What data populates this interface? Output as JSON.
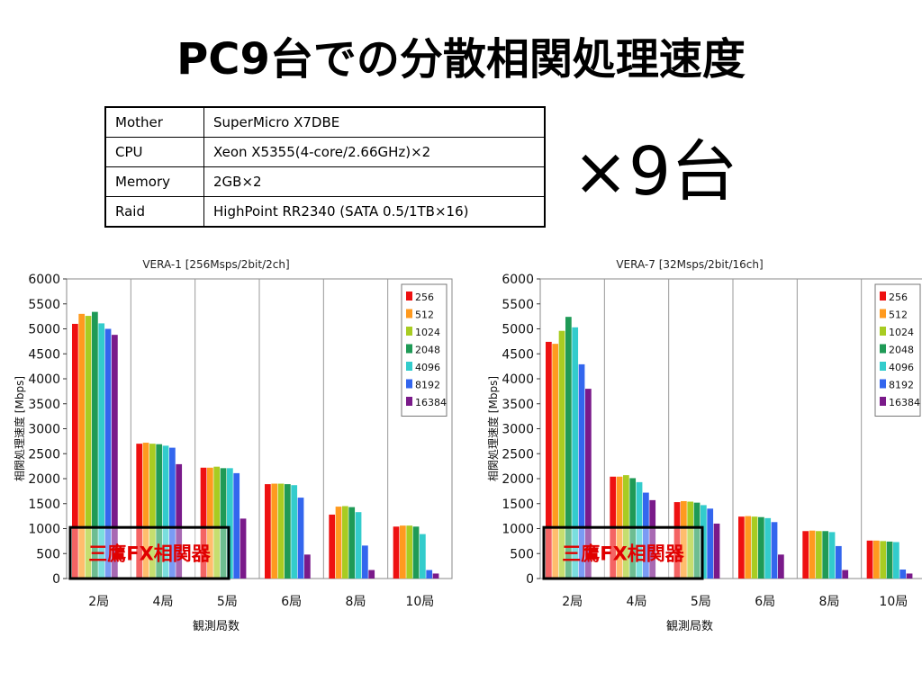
{
  "page": {
    "title": "PC9台での分散相関処理速度",
    "count_label": "×9台"
  },
  "spec_table": [
    {
      "key": "Mother",
      "value": "SuperMicro X7DBE"
    },
    {
      "key": "CPU",
      "value": "Xeon X5355(4-core/2.66GHz)×2"
    },
    {
      "key": "Memory",
      "value": "2GB×2"
    },
    {
      "key": "Raid",
      "value": "HighPoint RR2340 (SATA 0.5/1TB×16)"
    }
  ],
  "colors": [
    "#ee1111",
    "#ff9a1f",
    "#a8cc22",
    "#1f9a56",
    "#33cccc",
    "#3366ee",
    "#7a1a8a"
  ],
  "chart_data": [
    {
      "type": "bar",
      "title": "VERA-1 [256Msps/2bit/2ch]",
      "xlabel": "観測局数",
      "ylabel": "相関処理速度 [Mbps]",
      "ylim": [
        0,
        6000
      ],
      "yticks": [
        0,
        500,
        1000,
        1500,
        2000,
        2500,
        3000,
        3500,
        4000,
        4500,
        5000,
        5500,
        6000
      ],
      "grid": "vertical separators",
      "legend": "top-right",
      "categories": [
        "2局",
        "4局",
        "5局",
        "6局",
        "8局",
        "10局"
      ],
      "reference_box": {
        "label": "三鷹FX相関器",
        "value": 1024
      },
      "series": [
        {
          "name": "256",
          "values": [
            5100,
            2700,
            2220,
            1890,
            1280,
            1040
          ]
        },
        {
          "name": "512",
          "values": [
            5300,
            2720,
            2220,
            1900,
            1440,
            1060
          ]
        },
        {
          "name": "1024",
          "values": [
            5260,
            2700,
            2240,
            1900,
            1450,
            1060
          ]
        },
        {
          "name": "2048",
          "values": [
            5340,
            2690,
            2210,
            1890,
            1430,
            1040
          ]
        },
        {
          "name": "4096",
          "values": [
            5110,
            2660,
            2210,
            1870,
            1330,
            890
          ]
        },
        {
          "name": "8192",
          "values": [
            5000,
            2620,
            2110,
            1620,
            660,
            170
          ]
        },
        {
          "name": "16384",
          "values": [
            4880,
            2290,
            1200,
            480,
            170,
            100
          ]
        }
      ]
    },
    {
      "type": "bar",
      "title": "VERA-7 [32Msps/2bit/16ch]",
      "xlabel": "観測局数",
      "ylabel": "相関処理速度 [Mbps]",
      "ylim": [
        0,
        6000
      ],
      "yticks": [
        0,
        500,
        1000,
        1500,
        2000,
        2500,
        3000,
        3500,
        4000,
        4500,
        5000,
        5500,
        6000
      ],
      "grid": "vertical separators",
      "legend": "top-right",
      "categories": [
        "2局",
        "4局",
        "5局",
        "6局",
        "8局",
        "10局"
      ],
      "reference_box": {
        "label": "三鷹FX相関器",
        "value": 1024
      },
      "series": [
        {
          "name": "256",
          "values": [
            4740,
            2040,
            1530,
            1240,
            950,
            760
          ]
        },
        {
          "name": "512",
          "values": [
            4700,
            2040,
            1550,
            1250,
            960,
            760
          ]
        },
        {
          "name": "1024",
          "values": [
            4960,
            2070,
            1540,
            1240,
            950,
            750
          ]
        },
        {
          "name": "2048",
          "values": [
            5240,
            2010,
            1520,
            1230,
            950,
            740
          ]
        },
        {
          "name": "4096",
          "values": [
            5030,
            1930,
            1470,
            1210,
            930,
            730
          ]
        },
        {
          "name": "8192",
          "values": [
            4290,
            1720,
            1400,
            1130,
            650,
            180
          ]
        },
        {
          "name": "16384",
          "values": [
            3800,
            1570,
            1100,
            480,
            170,
            100
          ]
        }
      ]
    }
  ]
}
